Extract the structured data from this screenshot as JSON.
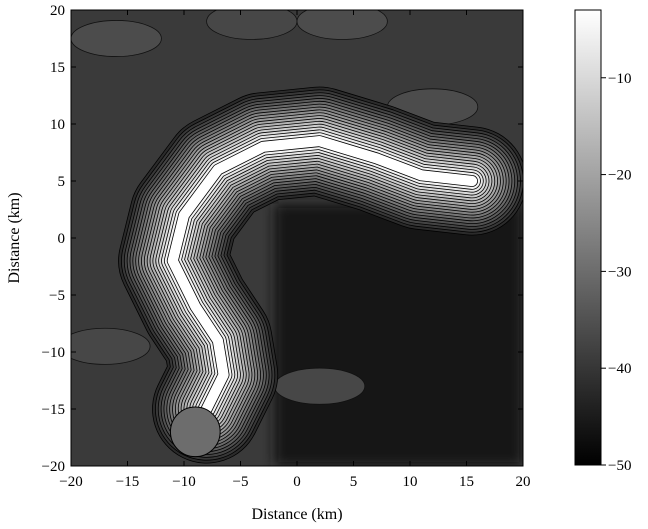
{
  "chart_data": {
    "type": "heatmap",
    "subtype": "filled-contour",
    "title": "",
    "xlabel": "Distance (km)",
    "ylabel": "Distance (km)",
    "xlim": [
      -20,
      20
    ],
    "ylim": [
      -20,
      20
    ],
    "xticks": [
      -20,
      -15,
      -10,
      -5,
      0,
      5,
      10,
      15,
      20
    ],
    "yticks": [
      -20,
      -15,
      -10,
      -5,
      0,
      5,
      10,
      15,
      20
    ],
    "colorbar": {
      "ticks": [
        -10,
        -20,
        -30,
        -40,
        -50
      ],
      "range": [
        -50,
        -3
      ],
      "colormap": "gray"
    },
    "background_level": -42,
    "ridge": {
      "peak_level": -3,
      "path": [
        [
          15.5,
          5
        ],
        [
          11,
          5.5
        ],
        [
          7,
          7
        ],
        [
          2,
          8.5
        ],
        [
          -3,
          8
        ],
        [
          -7,
          6
        ],
        [
          -10,
          2
        ],
        [
          -11,
          -2
        ],
        [
          -9,
          -6
        ],
        [
          -7,
          -9
        ],
        [
          -6.5,
          -12
        ],
        [
          -8,
          -15
        ]
      ],
      "end_cap": [
        -9,
        -17
      ]
    },
    "light_patches": [
      {
        "center": [
          -4,
          19
        ],
        "level": -37
      },
      {
        "center": [
          4,
          19
        ],
        "level": -36
      },
      {
        "center": [
          -16,
          17.5
        ],
        "level": -36
      },
      {
        "center": [
          12,
          11.5
        ],
        "level": -36
      },
      {
        "center": [
          -17,
          -9.5
        ],
        "level": -37
      },
      {
        "center": [
          2,
          -13
        ],
        "level": -37
      }
    ],
    "dark_region": {
      "bounds": [
        [
          -2,
          -20
        ],
        [
          20,
          3
        ]
      ],
      "level": -46
    }
  }
}
